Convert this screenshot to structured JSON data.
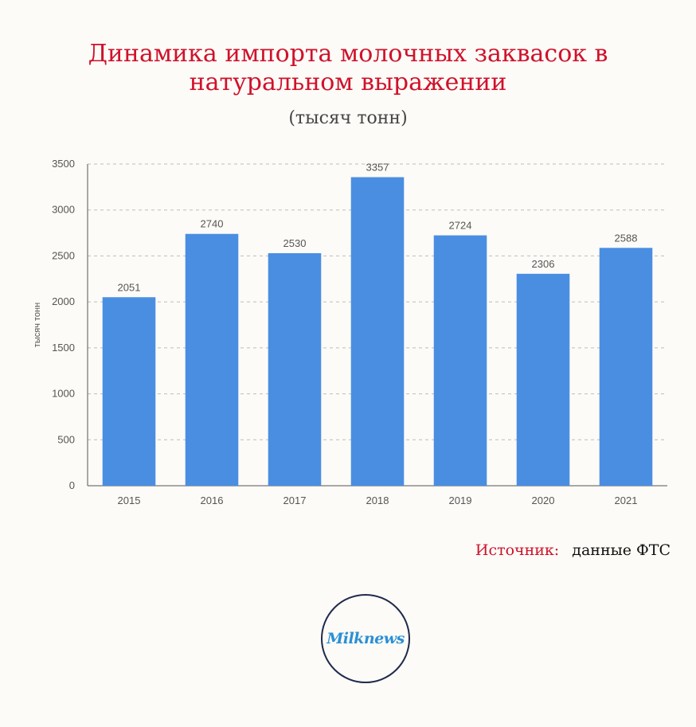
{
  "header": {
    "title_line1": "Динамика импорта молочных заквасок в",
    "title_line2": "натуральном выражении",
    "subtitle": "(тысяч тонн)"
  },
  "source": {
    "label": "Источник:",
    "value": "данные ФТС"
  },
  "logo": {
    "text": "Milknews"
  },
  "colors": {
    "bar": "#4a8ee2",
    "title": "#d0112b",
    "grid": "#bdbdbd"
  },
  "chart_data": {
    "type": "bar",
    "categories": [
      "2015",
      "2016",
      "2017",
      "2018",
      "2019",
      "2020",
      "2021"
    ],
    "values": [
      2051,
      2740,
      2530,
      3357,
      2724,
      2306,
      2588
    ],
    "title": "Динамика импорта молочных заквасок в натуральном выражении",
    "subtitle": "(тысяч тонн)",
    "xlabel": "",
    "ylabel": "тысяч тонн",
    "ylim": [
      0,
      3500
    ],
    "yticks": [
      0,
      500,
      1000,
      1500,
      2000,
      2500,
      3000,
      3500
    ],
    "grid": true,
    "grid_style": "dashed",
    "legend": "none",
    "data_labels": true
  }
}
